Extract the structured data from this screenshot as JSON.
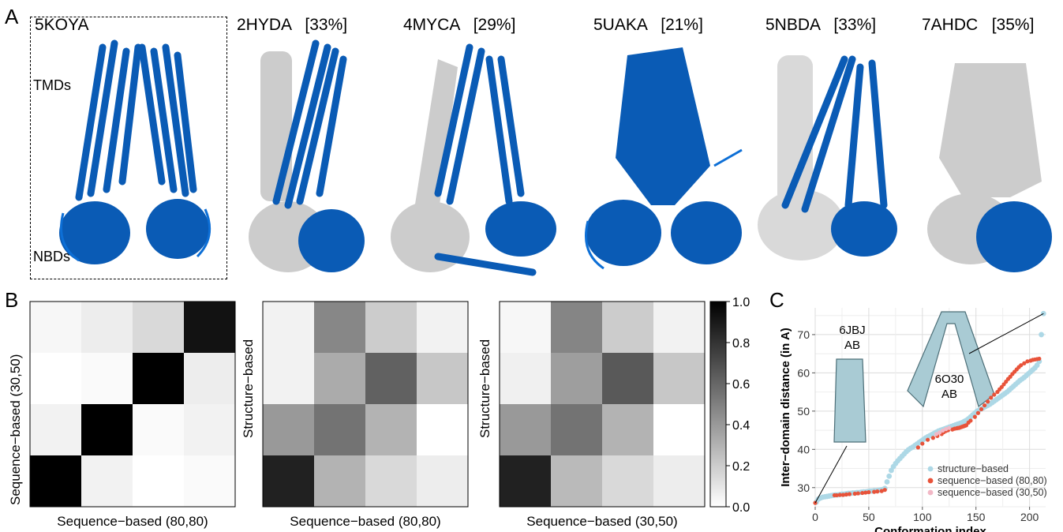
{
  "panels": {
    "a": "A",
    "b": "B",
    "c": "C"
  },
  "structures": [
    {
      "id": "5KOYA",
      "pct": "",
      "gray": false
    },
    {
      "id": "2HYDA",
      "pct": "[33%]",
      "gray": true
    },
    {
      "id": "4MYCA",
      "pct": "[29%]",
      "gray": true
    },
    {
      "id": "5UAKA",
      "pct": "[21%]",
      "gray": true
    },
    {
      "id": "5NBDA",
      "pct": "[33%]",
      "gray": true
    },
    {
      "id": "7AHDC",
      "pct": "[35%]",
      "gray": true
    }
  ],
  "domain_labels": {
    "tmds": "TMDs",
    "nbds": "NBDs"
  },
  "heatmaps": {
    "matrices": [
      {
        "ylabel": "Sequence−based (30,50)",
        "xlabel": "Sequence−based (80,80)",
        "values": [
          [
            0.03,
            0.07,
            0.15,
            0.93
          ],
          [
            0.0,
            0.02,
            1.0,
            0.07
          ],
          [
            0.05,
            1.0,
            0.02,
            0.05
          ],
          [
            1.0,
            0.05,
            0.0,
            0.02
          ]
        ]
      },
      {
        "ylabel": "Structure−based",
        "xlabel": "Sequence−based (80,80)",
        "values": [
          [
            0.05,
            0.47,
            0.2,
            0.05
          ],
          [
            0.05,
            0.33,
            0.62,
            0.22
          ],
          [
            0.4,
            0.55,
            0.3,
            0.0
          ],
          [
            0.87,
            0.3,
            0.15,
            0.07
          ]
        ]
      },
      {
        "ylabel": "Structure−based",
        "xlabel": "Sequence−based (30,50)",
        "values": [
          [
            0.03,
            0.48,
            0.2,
            0.05
          ],
          [
            0.06,
            0.38,
            0.65,
            0.22
          ],
          [
            0.4,
            0.55,
            0.3,
            0.0
          ],
          [
            0.87,
            0.27,
            0.15,
            0.07
          ]
        ]
      }
    ],
    "colorbar": {
      "ticks": [
        "1.0",
        "0.8",
        "0.6",
        "0.4",
        "0.2",
        "0.0"
      ]
    }
  },
  "chart_data": {
    "type": "scatter",
    "xlabel": "Conformation index",
    "ylabel": "Inter−domain distance (in A)",
    "xlim": [
      0,
      215
    ],
    "ylim": [
      25,
      77
    ],
    "xticks": [
      "0",
      "50",
      "100",
      "150",
      "200"
    ],
    "yticks": [
      "30",
      "40",
      "50",
      "60",
      "70"
    ],
    "grid": true,
    "legend_position": "bottom-right",
    "series": [
      {
        "name": "structure−based",
        "color": "#add8e6",
        "x": [
          1,
          3,
          5,
          7,
          9,
          11,
          13,
          15,
          17,
          19,
          21,
          23,
          25,
          27,
          29,
          31,
          33,
          35,
          37,
          39,
          41,
          43,
          45,
          47,
          49,
          51,
          53,
          55,
          57,
          59,
          61,
          63,
          65,
          67,
          69,
          71,
          73,
          75,
          77,
          79,
          81,
          83,
          85,
          87,
          89,
          91,
          93,
          95,
          97,
          99,
          101,
          103,
          105,
          107,
          109,
          111,
          113,
          115,
          117,
          119,
          121,
          123,
          125,
          127,
          129,
          131,
          133,
          135,
          137,
          139,
          141,
          143,
          145,
          147,
          149,
          151,
          153,
          155,
          157,
          159,
          161,
          163,
          165,
          167,
          169,
          171,
          173,
          175,
          177,
          179,
          181,
          183,
          185,
          187,
          189,
          191,
          193,
          195,
          197,
          199,
          201,
          203,
          205,
          207,
          209,
          211,
          213
        ],
        "y": [
          26.2,
          27.0,
          27.3,
          27.5,
          27.6,
          27.7,
          27.8,
          27.9,
          28.0,
          28.1,
          28.1,
          28.2,
          28.3,
          28.3,
          28.4,
          28.5,
          28.5,
          28.6,
          28.6,
          28.7,
          28.7,
          28.8,
          28.9,
          28.9,
          29.0,
          29.1,
          29.1,
          29.2,
          29.2,
          29.3,
          29.4,
          29.5,
          29.8,
          31.5,
          33.0,
          34.5,
          35.5,
          36.3,
          37.0,
          37.6,
          38.2,
          38.8,
          39.4,
          39.9,
          40.3,
          40.6,
          41.0,
          41.4,
          41.8,
          42.2,
          42.6,
          43.0,
          43.3,
          43.6,
          43.9,
          44.2,
          44.5,
          44.8,
          45.0,
          45.2,
          45.4,
          45.6,
          45.8,
          46.0,
          46.2,
          46.4,
          46.6,
          46.8,
          47.0,
          47.3,
          47.6,
          48.0,
          48.5,
          49.0,
          49.5,
          50.0,
          50.3,
          50.6,
          50.9,
          51.2,
          51.5,
          51.8,
          52.2,
          52.6,
          53.0,
          53.4,
          53.8,
          54.2,
          54.6,
          55.0,
          55.5,
          56.0,
          56.5,
          57.0,
          57.5,
          58.0,
          58.4,
          58.8,
          59.3,
          59.8,
          60.3,
          60.8,
          61.3,
          62.0,
          63.0,
          70.0,
          75.5
        ]
      },
      {
        "name": "sequence−based (80,80)",
        "color": "#e8533a",
        "x": [
          0,
          18,
          20,
          23,
          26,
          29,
          32,
          37,
          40,
          44,
          47,
          50,
          55,
          58,
          62,
          65,
          96,
          100,
          105,
          110,
          114,
          118,
          120,
          122,
          124,
          128,
          130,
          132,
          133,
          134,
          135,
          136,
          137,
          138,
          139,
          140,
          141,
          143,
          145,
          149,
          152,
          155,
          158,
          161,
          164,
          167,
          170,
          172,
          174,
          176,
          178,
          180,
          182,
          184,
          186,
          188,
          190,
          192,
          195,
          198,
          201,
          203,
          205,
          207,
          209
        ],
        "y": [
          26.0,
          28.0,
          28.0,
          28.1,
          28.1,
          28.2,
          28.3,
          28.4,
          28.5,
          28.6,
          28.7,
          28.8,
          28.9,
          29.0,
          29.1,
          29.4,
          40.5,
          41.5,
          42.5,
          43.0,
          43.5,
          44.0,
          44.5,
          44.8,
          45.0,
          45.2,
          45.4,
          45.5,
          45.6,
          45.6,
          45.7,
          45.8,
          45.9,
          46.0,
          46.1,
          46.2,
          46.3,
          47.0,
          47.5,
          48.5,
          49.5,
          50.5,
          51.5,
          52.5,
          53.5,
          54.3,
          55.0,
          55.7,
          56.3,
          57.0,
          57.7,
          58.4,
          59.0,
          59.7,
          60.3,
          60.9,
          61.5,
          62.0,
          62.5,
          63.0,
          63.2,
          63.4,
          63.5,
          63.6,
          63.7
        ]
      },
      {
        "name": "sequence−based (30,50)",
        "color": "#f2b8c6",
        "x": [
          113,
          116,
          119,
          122,
          125
        ],
        "y": [
          44.0,
          44.4,
          44.9,
          45.3,
          45.6
        ]
      }
    ],
    "annotations": [
      {
        "name": "6JBJ AB",
        "lines": [
          "6JBJ",
          "AB"
        ],
        "x": 0,
        "y": 26
      },
      {
        "name": "6O30 AB",
        "lines": [
          "6O30",
          "AB"
        ],
        "x": 213,
        "y": 75.5
      }
    ]
  }
}
